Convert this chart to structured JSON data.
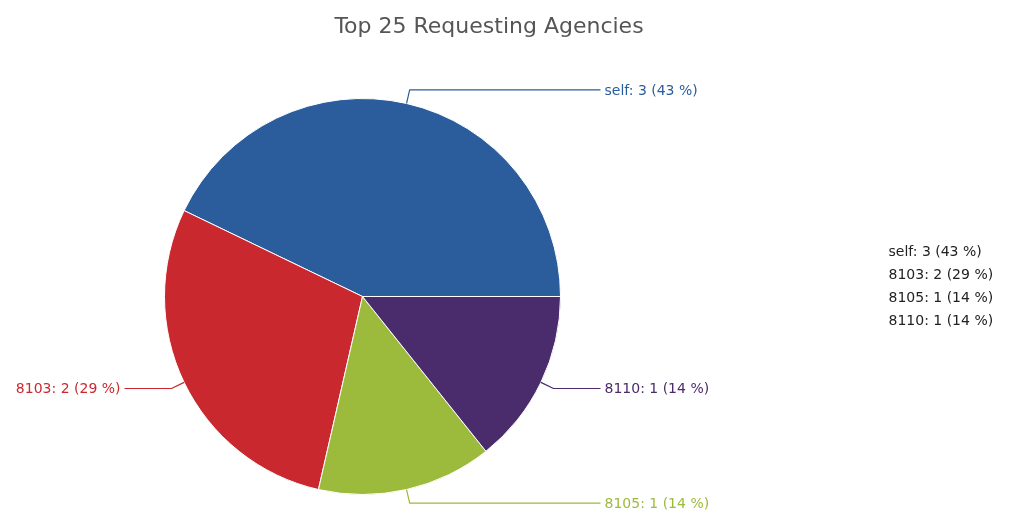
{
  "chart_data": {
    "type": "pie",
    "title": "Top 25 Requesting Agencies",
    "categories": [
      "self: 3 (43 %)",
      "8103: 2 (29 %)",
      "8105: 1 (14 %)",
      "8110: 1 (14 %)"
    ],
    "values": [
      3,
      2,
      1,
      1
    ],
    "colors": [
      "#2b5c9c",
      "#c9282f",
      "#9cba3c",
      "#4a2b6b"
    ]
  }
}
